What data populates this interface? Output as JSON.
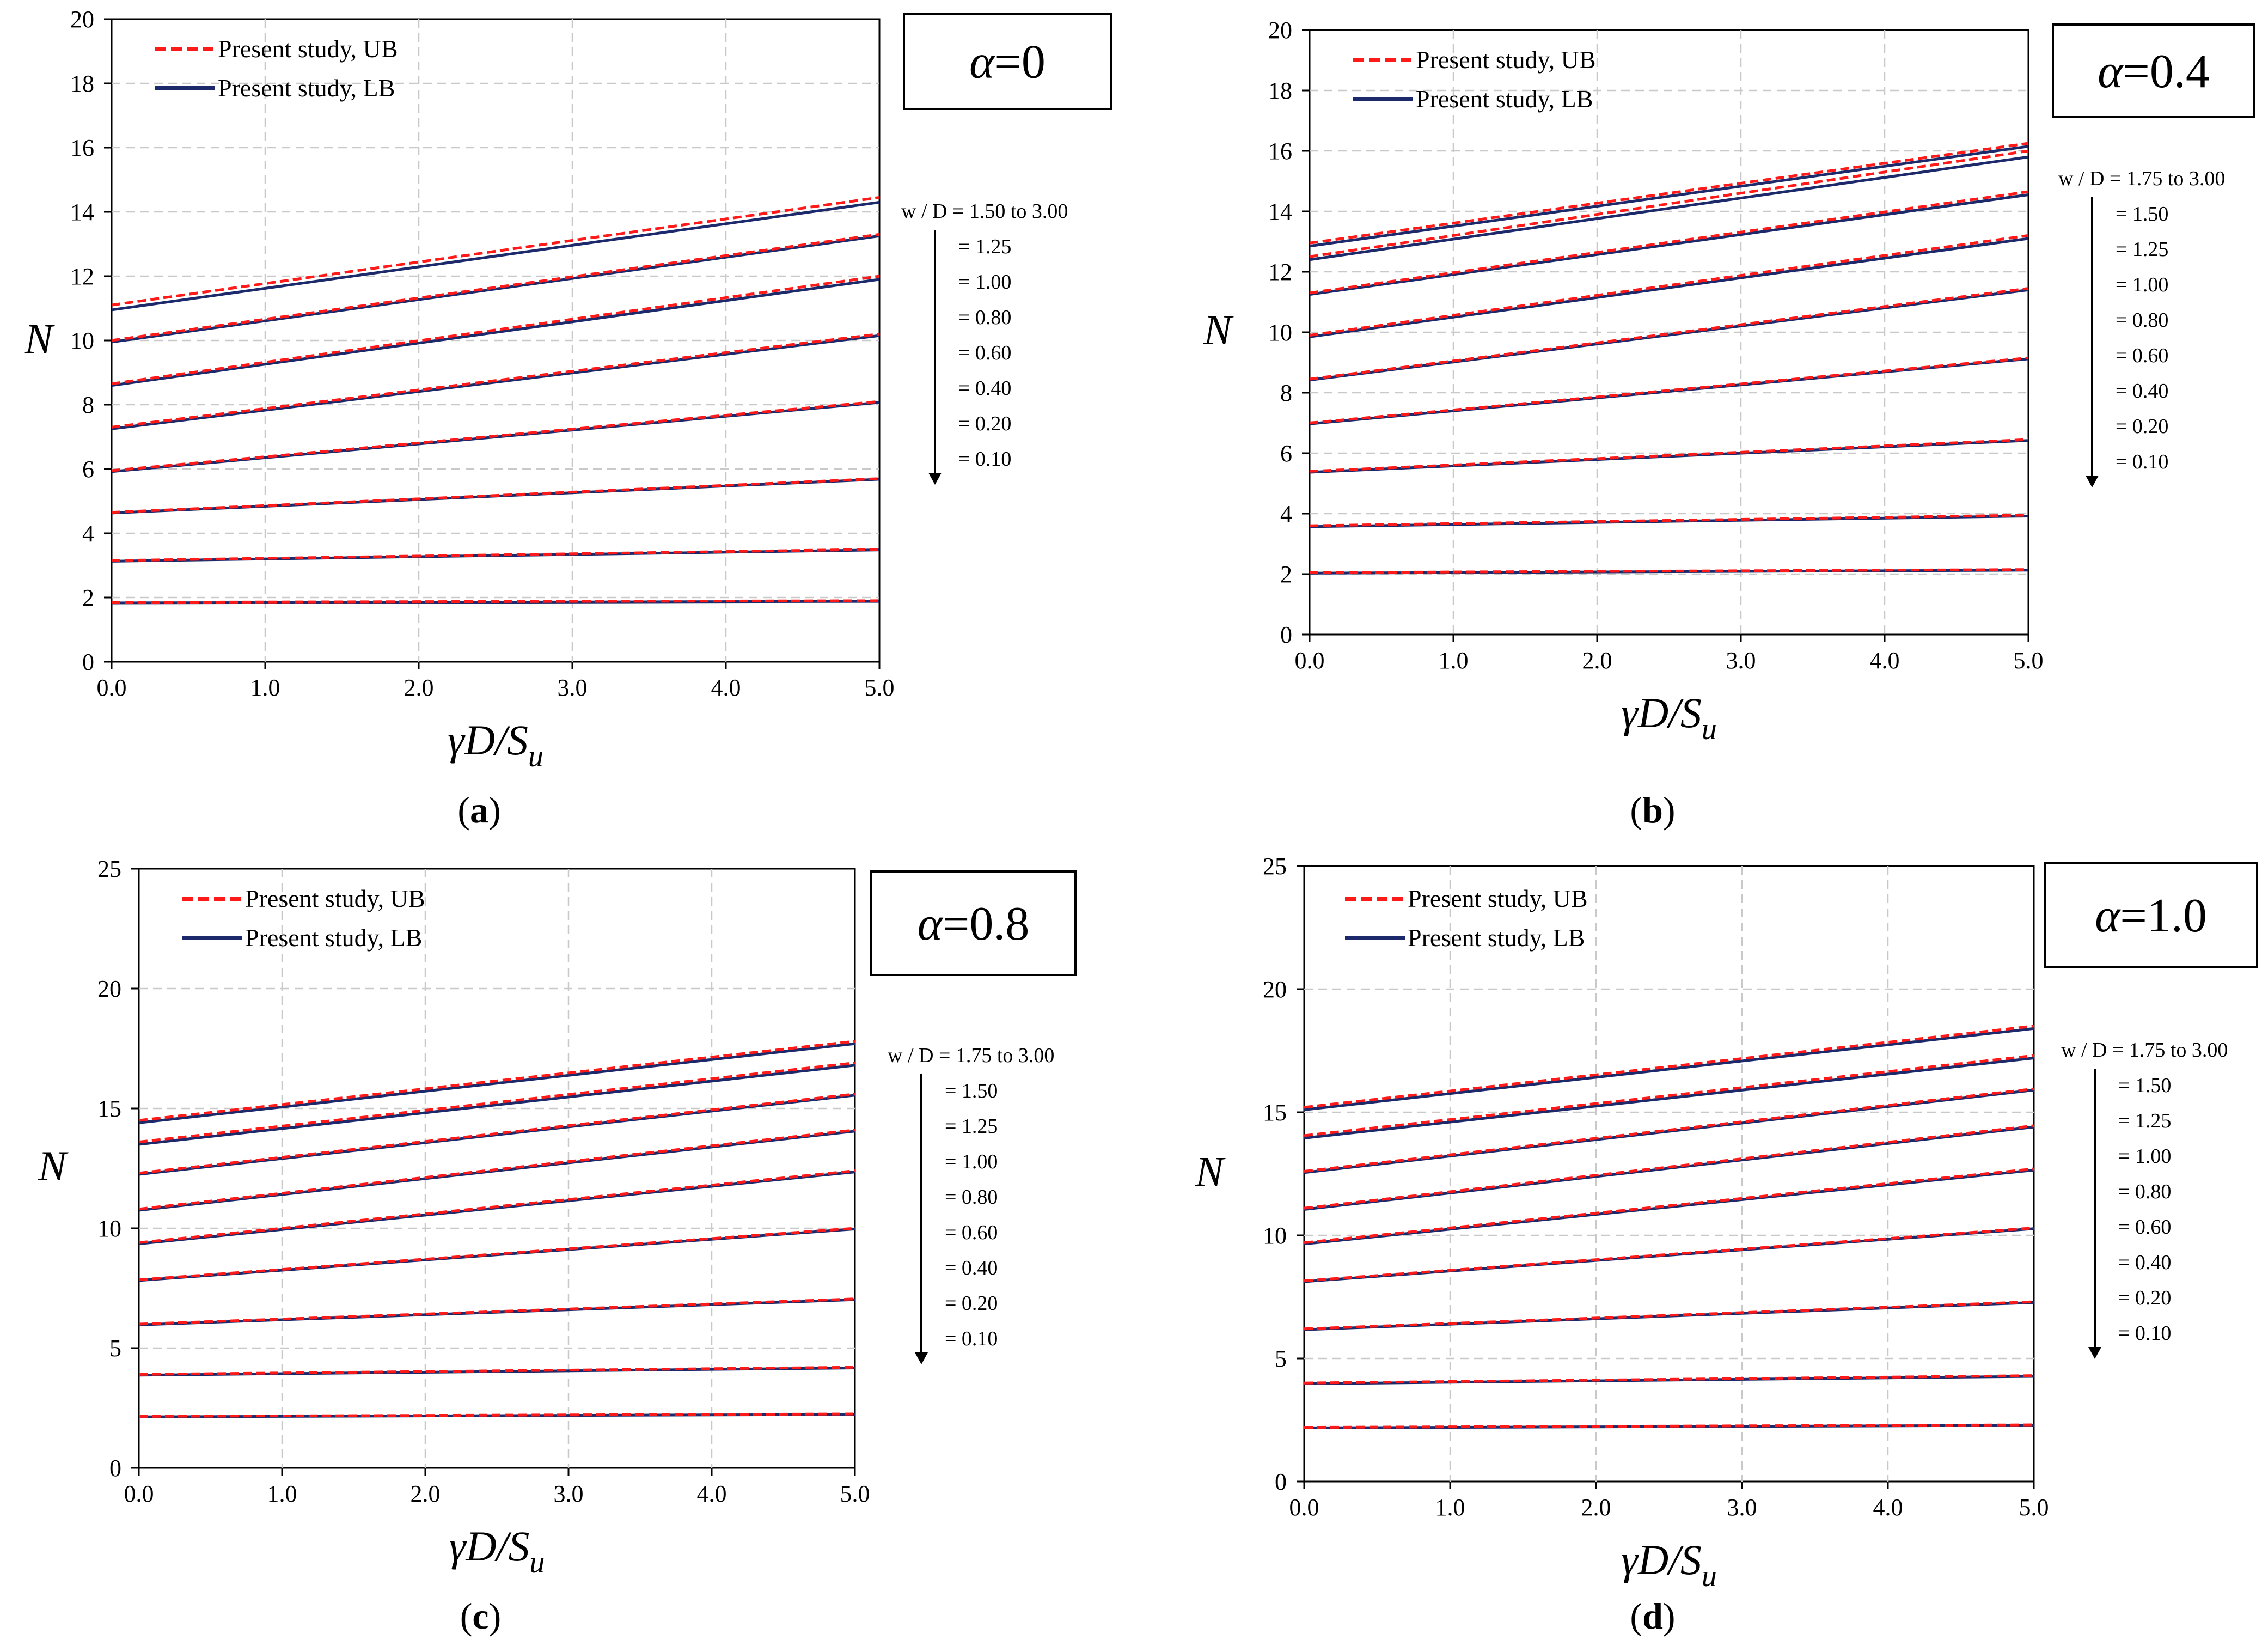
{
  "chart_data": [
    {
      "type": "line",
      "panel_label": "a",
      "title": "α=0",
      "xlabel": "γD/S_u",
      "ylabel": "N",
      "xlim": [
        0,
        5
      ],
      "ylim": [
        0,
        20
      ],
      "xticks": [
        "0.0",
        "1.0",
        "2.0",
        "3.0",
        "4.0",
        "5.0"
      ],
      "yticks": [
        "0",
        "2",
        "4",
        "6",
        "8",
        "10",
        "12",
        "14",
        "16",
        "18",
        "20"
      ],
      "grid": true,
      "legend": [
        "Present study, UB",
        "Present study, LB"
      ],
      "wd_labels": [
        "w / D = 1.50 to 3.00",
        "= 1.25",
        "= 1.00",
        "= 0.80",
        "= 0.60",
        "= 0.40",
        "= 0.20",
        "= 0.10"
      ],
      "series": [
        {
          "name": "w/D = 1.50 to 3.00",
          "ub": [
            11.1,
            14.45
          ],
          "lb": [
            10.95,
            14.3
          ]
        },
        {
          "name": "w/D = 1.25",
          "ub": [
            10.0,
            13.3
          ],
          "lb": [
            9.95,
            13.25
          ]
        },
        {
          "name": "w/D = 1.00",
          "ub": [
            8.65,
            12.0
          ],
          "lb": [
            8.6,
            11.9
          ]
        },
        {
          "name": "w/D = 0.80",
          "ub": [
            7.3,
            10.2
          ],
          "lb": [
            7.25,
            10.15
          ]
        },
        {
          "name": "w/D = 0.60",
          "ub": [
            5.95,
            8.1
          ],
          "lb": [
            5.92,
            8.07
          ]
        },
        {
          "name": "w/D = 0.40",
          "ub": [
            4.65,
            5.7
          ],
          "lb": [
            4.63,
            5.68
          ]
        },
        {
          "name": "w/D = 0.20",
          "ub": [
            3.15,
            3.5
          ],
          "lb": [
            3.13,
            3.48
          ]
        },
        {
          "name": "w/D = 0.10",
          "ub": [
            1.85,
            1.9
          ],
          "lb": [
            1.83,
            1.88
          ]
        }
      ]
    },
    {
      "type": "line",
      "panel_label": "b",
      "title": "α=0.4",
      "xlabel": "γD/S_u",
      "ylabel": "N",
      "xlim": [
        0,
        5
      ],
      "ylim": [
        0,
        20
      ],
      "xticks": [
        "0.0",
        "1.0",
        "2.0",
        "3.0",
        "4.0",
        "5.0"
      ],
      "yticks": [
        "0",
        "2",
        "4",
        "6",
        "8",
        "10",
        "12",
        "14",
        "16",
        "18",
        "20"
      ],
      "grid": true,
      "legend": [
        "Present study, UB",
        "Present study, LB"
      ],
      "wd_labels": [
        "w / D = 1.75 to 3.00",
        "= 1.50",
        "= 1.25",
        "= 1.00",
        "= 0.80",
        "= 0.60",
        "= 0.40",
        "= 0.20",
        "= 0.10"
      ],
      "series": [
        {
          "name": "w/D = 1.75 to 3.00",
          "ub": [
            12.95,
            16.25
          ],
          "lb": [
            12.85,
            16.15
          ]
        },
        {
          "name": "w/D = 1.50",
          "ub": [
            12.5,
            16.0
          ],
          "lb": [
            12.4,
            15.8
          ]
        },
        {
          "name": "w/D = 1.25",
          "ub": [
            11.3,
            14.65
          ],
          "lb": [
            11.25,
            14.55
          ]
        },
        {
          "name": "w/D = 1.00",
          "ub": [
            9.9,
            13.2
          ],
          "lb": [
            9.85,
            13.1
          ]
        },
        {
          "name": "w/D = 0.80",
          "ub": [
            8.45,
            11.45
          ],
          "lb": [
            8.42,
            11.4
          ]
        },
        {
          "name": "w/D = 0.60",
          "ub": [
            7.0,
            9.15
          ],
          "lb": [
            6.97,
            9.12
          ]
        },
        {
          "name": "w/D = 0.40",
          "ub": [
            5.4,
            6.45
          ],
          "lb": [
            5.37,
            6.42
          ]
        },
        {
          "name": "w/D = 0.20",
          "ub": [
            3.6,
            3.95
          ],
          "lb": [
            3.57,
            3.92
          ]
        },
        {
          "name": "w/D = 0.10",
          "ub": [
            2.05,
            2.15
          ],
          "lb": [
            2.03,
            2.13
          ]
        }
      ]
    },
    {
      "type": "line",
      "panel_label": "c",
      "title": "α=0.8",
      "xlabel": "γD/S_u",
      "ylabel": "N",
      "xlim": [
        0,
        5
      ],
      "ylim": [
        0,
        25
      ],
      "xticks": [
        "0.0",
        "1.0",
        "2.0",
        "3.0",
        "4.0",
        "5.0"
      ],
      "yticks": [
        "0",
        "5",
        "10",
        "15",
        "20",
        "25"
      ],
      "grid": true,
      "legend": [
        "Present study, UB",
        "Present study, LB"
      ],
      "wd_labels": [
        "w / D = 1.75 to 3.00",
        "= 1.50",
        "= 1.25",
        "= 1.00",
        "= 0.80",
        "= 0.60",
        "= 0.40",
        "= 0.20",
        "= 0.10"
      ],
      "series": [
        {
          "name": "w/D = 1.75 to 3.00",
          "ub": [
            14.5,
            17.8
          ],
          "lb": [
            14.4,
            17.7
          ]
        },
        {
          "name": "w/D = 1.50",
          "ub": [
            13.6,
            16.9
          ],
          "lb": [
            13.5,
            16.8
          ]
        },
        {
          "name": "w/D = 1.25",
          "ub": [
            12.3,
            15.6
          ],
          "lb": [
            12.25,
            15.55
          ]
        },
        {
          "name": "w/D = 1.00",
          "ub": [
            10.8,
            14.1
          ],
          "lb": [
            10.75,
            14.05
          ]
        },
        {
          "name": "w/D = 0.80",
          "ub": [
            9.4,
            12.4
          ],
          "lb": [
            9.35,
            12.35
          ]
        },
        {
          "name": "w/D = 0.60",
          "ub": [
            7.85,
            10.0
          ],
          "lb": [
            7.82,
            9.97
          ]
        },
        {
          "name": "w/D = 0.40",
          "ub": [
            6.0,
            7.05
          ],
          "lb": [
            5.97,
            7.02
          ]
        },
        {
          "name": "w/D = 0.20",
          "ub": [
            3.9,
            4.2
          ],
          "lb": [
            3.87,
            4.17
          ]
        },
        {
          "name": "w/D = 0.10",
          "ub": [
            2.15,
            2.25
          ],
          "lb": [
            2.13,
            2.23
          ]
        }
      ]
    },
    {
      "type": "line",
      "panel_label": "d",
      "title": "α=1.0",
      "xlabel": "γD/S_u",
      "ylabel": "N",
      "xlim": [
        0,
        5
      ],
      "ylim": [
        0,
        25
      ],
      "xticks": [
        "0.0",
        "1.0",
        "2.0",
        "3.0",
        "4.0",
        "5.0"
      ],
      "yticks": [
        "0",
        "5",
        "10",
        "15",
        "20",
        "25"
      ],
      "grid": true,
      "legend": [
        "Present study, UB",
        "Present study, LB"
      ],
      "wd_labels": [
        "w / D = 1.75 to 3.00",
        "= 1.50",
        "= 1.25",
        "= 1.00",
        "= 0.80",
        "= 0.60",
        "= 0.40",
        "= 0.20",
        "= 0.10"
      ],
      "series": [
        {
          "name": "w/D = 1.75 to 3.00",
          "ub": [
            15.2,
            18.5
          ],
          "lb": [
            15.1,
            18.4
          ]
        },
        {
          "name": "w/D = 1.50",
          "ub": [
            14.05,
            17.3
          ],
          "lb": [
            13.95,
            17.2
          ]
        },
        {
          "name": "w/D = 1.25",
          "ub": [
            12.6,
            15.95
          ],
          "lb": [
            12.55,
            15.9
          ]
        },
        {
          "name": "w/D = 1.00",
          "ub": [
            11.1,
            14.45
          ],
          "lb": [
            11.05,
            14.4
          ]
        },
        {
          "name": "w/D = 0.80",
          "ub": [
            9.7,
            12.7
          ],
          "lb": [
            9.65,
            12.65
          ]
        },
        {
          "name": "w/D = 0.60",
          "ub": [
            8.15,
            10.3
          ],
          "lb": [
            8.12,
            10.27
          ]
        },
        {
          "name": "w/D = 0.40",
          "ub": [
            6.2,
            7.3
          ],
          "lb": [
            6.17,
            7.27
          ]
        },
        {
          "name": "w/D = 0.20",
          "ub": [
            4.0,
            4.3
          ],
          "lb": [
            3.97,
            4.27
          ]
        },
        {
          "name": "w/D = 0.10",
          "ub": [
            2.2,
            2.3
          ],
          "lb": [
            2.18,
            2.28
          ]
        }
      ]
    }
  ],
  "colors": {
    "ub": "#ff1a1a",
    "lb": "#1c2a6b",
    "grid": "#c9c9c9",
    "axis": "#000000"
  }
}
